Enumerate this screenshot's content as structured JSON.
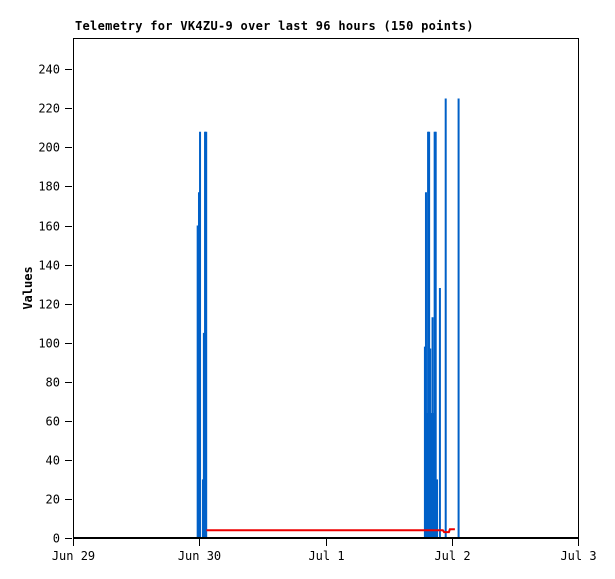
{
  "window": {
    "background": "#ffffff"
  },
  "chart_data": {
    "type": "bar",
    "subtype": "impulse-telemetry-plot",
    "title": "Telemetry for VK4ZU-9 over last 96 hours (150 points)",
    "ylabel": "Values",
    "xlabel": "",
    "ylim": [
      0,
      256
    ],
    "xlim_hours": [
      0,
      96
    ],
    "grid": false,
    "legend": "none",
    "axis_color": "#000000",
    "y_ticks": [
      0,
      20,
      40,
      60,
      80,
      100,
      120,
      140,
      160,
      180,
      200,
      220,
      240
    ],
    "x_ticks": [
      {
        "hour": 0,
        "label": "Jun 29"
      },
      {
        "hour": 24,
        "label": "Jun 30"
      },
      {
        "hour": 48,
        "label": "Jul 1"
      },
      {
        "hour": 72,
        "label": "Jul 2"
      },
      {
        "hour": 96,
        "label": "Jul 3"
      }
    ],
    "series": [
      {
        "name": "telemetry-blue",
        "color": "#0060c8",
        "style": "impulses",
        "points": [
          [
            23.7,
            160
          ],
          [
            23.95,
            177
          ],
          [
            24.15,
            208
          ],
          [
            24.7,
            30
          ],
          [
            24.88,
            105
          ],
          [
            25.1,
            208
          ],
          [
            25.32,
            208
          ],
          [
            66.9,
            98
          ],
          [
            67.1,
            177
          ],
          [
            67.3,
            64
          ],
          [
            67.5,
            208
          ],
          [
            67.7,
            208
          ],
          [
            67.9,
            97
          ],
          [
            68.1,
            64
          ],
          [
            68.35,
            113
          ],
          [
            68.55,
            64
          ],
          [
            68.75,
            208
          ],
          [
            68.95,
            208
          ],
          [
            69.2,
            30
          ],
          [
            69.75,
            128
          ],
          [
            70.85,
            225
          ],
          [
            73.3,
            225
          ]
        ]
      },
      {
        "name": "telemetry-red",
        "color": "#ee0000",
        "style": "line",
        "points": [
          [
            25.35,
            4
          ],
          [
            70.3,
            4
          ],
          [
            70.55,
            3
          ],
          [
            71.45,
            3
          ],
          [
            71.65,
            4.5
          ],
          [
            72.6,
            4.5
          ]
        ]
      },
      {
        "name": "telemetry-black-baseline",
        "color": "#000000",
        "style": "line",
        "points": [
          [
            0,
            0
          ],
          [
            96,
            0
          ]
        ]
      }
    ]
  }
}
